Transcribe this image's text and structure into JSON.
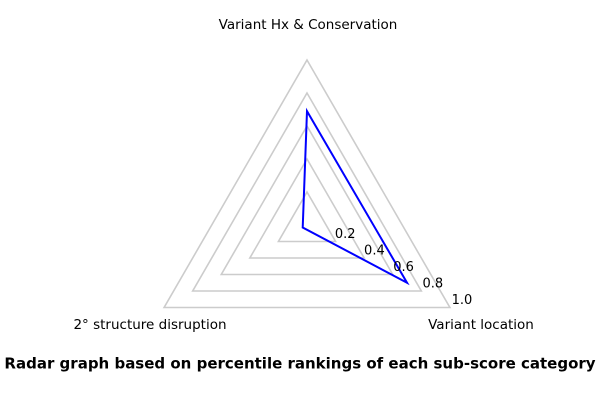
{
  "chart_data": {
    "type": "radar",
    "caption": "Radar graph based on percentile rankings of each sub-score category",
    "categories": [
      "Variant Hx & Conservation",
      "Variant location",
      "2° structure disruption"
    ],
    "values": [
      0.69,
      0.7,
      0.03
    ],
    "axes": [
      {
        "label": "Variant Hx & Conservation",
        "angle_deg": 90,
        "value": 0.69
      },
      {
        "label": "Variant location",
        "angle_deg": -30,
        "value": 0.7
      },
      {
        "label": "2° structure disruption",
        "angle_deg": 210,
        "value": 0.03
      }
    ],
    "ticks": [
      {
        "value": 0.2,
        "label": "0.2"
      },
      {
        "value": 0.4,
        "label": "0.4"
      },
      {
        "value": 0.6,
        "label": "0.6"
      },
      {
        "value": 0.8,
        "label": "0.8"
      },
      {
        "value": 1.0,
        "label": "1.0"
      }
    ],
    "rlim": [
      0,
      1.0
    ],
    "grid": true,
    "legend": null,
    "style": {
      "line_color": "#0000ff",
      "line_width": 2,
      "grid_color": "#cccccc",
      "grid_width": 1.6,
      "text_color": "#000000",
      "background": "#ffffff"
    }
  }
}
